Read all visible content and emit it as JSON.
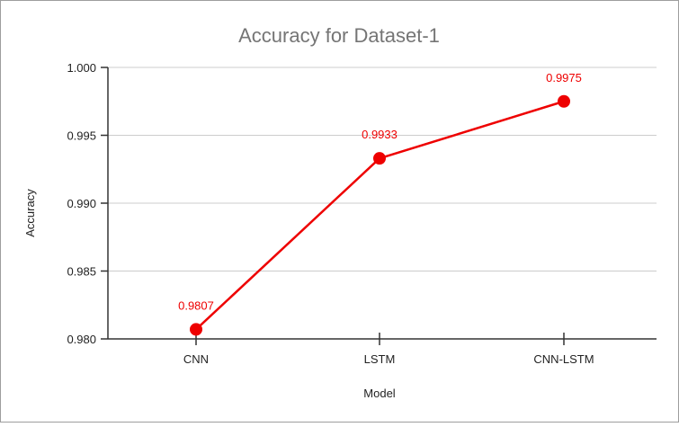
{
  "chart_data": {
    "type": "line",
    "title": "Accuracy for Dataset-1",
    "xlabel": "Model",
    "ylabel": "Accuracy",
    "categories": [
      "CNN",
      "LSTM",
      "CNN-LSTM"
    ],
    "values": [
      0.9807,
      0.9933,
      0.9975
    ],
    "data_labels": [
      "0.9807",
      "0.9933",
      "0.9975"
    ],
    "ylim": [
      0.98,
      1.0
    ],
    "y_ticks": [
      0.98,
      0.985,
      0.99,
      0.995,
      1.0
    ],
    "y_tick_labels": [
      "0.980",
      "0.985",
      "0.990",
      "0.995",
      "1.000"
    ],
    "grid": true,
    "legend": "none",
    "color": "#ee0000"
  }
}
